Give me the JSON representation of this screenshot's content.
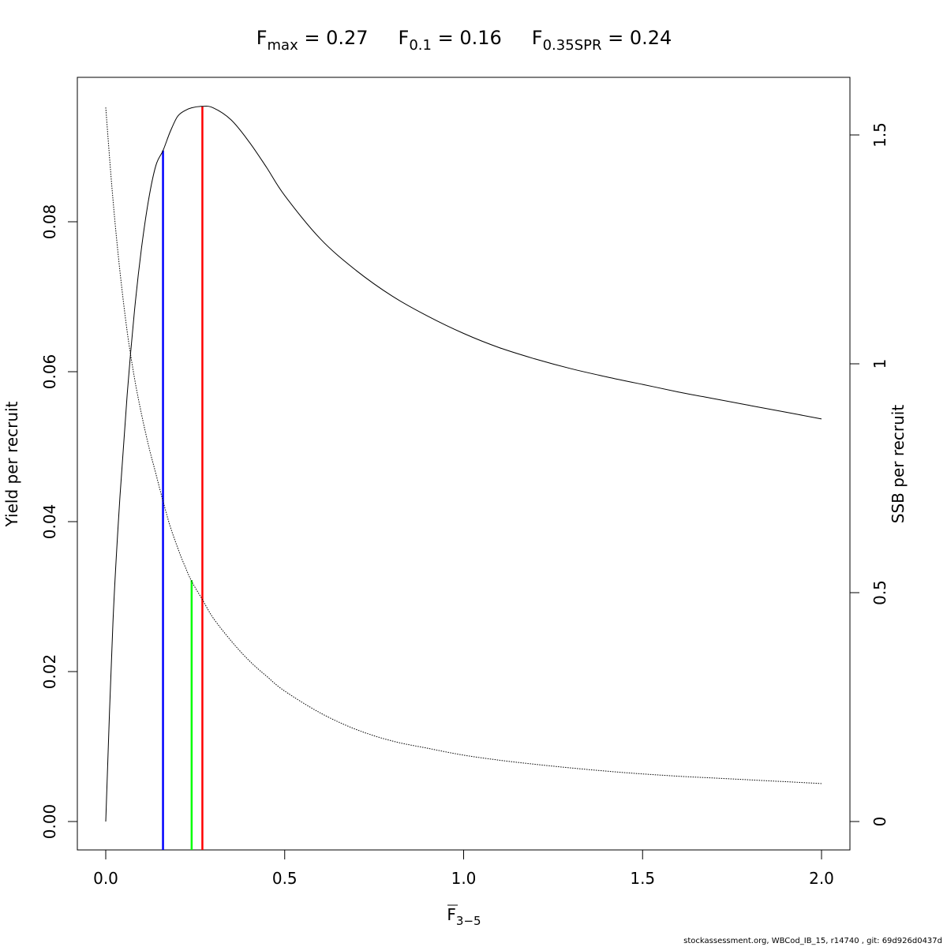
{
  "chart_data": {
    "type": "line",
    "title_parts": [
      {
        "main": "F",
        "sub": "max",
        "value": "= 0.27"
      },
      {
        "main": "F",
        "sub": "0.1",
        "value": "= 0.16"
      },
      {
        "main": "F",
        "sub": "0.35SPR",
        "value": "= 0.24"
      }
    ],
    "xlabel": {
      "main": "F",
      "sub": "3−5"
    },
    "ylabel_left": "Yield per recruit",
    "ylabel_right": "SSB per recruit",
    "xlim": [
      0,
      2
    ],
    "ylim_left": [
      0,
      0.095
    ],
    "ylim_right": [
      0,
      1.6
    ],
    "x_ticks": [
      "0.0",
      "0.5",
      "1.0",
      "1.5",
      "2.0"
    ],
    "x_tick_values": [
      0,
      0.5,
      1.0,
      1.5,
      2.0
    ],
    "y_left_ticks": [
      "0.00",
      "0.02",
      "0.04",
      "0.06",
      "0.08"
    ],
    "y_left_tick_values": [
      0,
      0.02,
      0.04,
      0.06,
      0.08
    ],
    "y_right_ticks": [
      "0",
      "0.5",
      "1",
      "1.5"
    ],
    "y_right_tick_values": [
      0,
      0.5,
      1,
      1.5
    ],
    "series": [
      {
        "axis": "left",
        "style": "solid",
        "x": [
          0,
          0.02,
          0.04,
          0.06,
          0.08,
          0.1,
          0.12,
          0.14,
          0.16,
          0.18,
          0.2,
          0.22,
          0.24,
          0.27,
          0.3,
          0.35,
          0.4,
          0.45,
          0.5,
          0.6,
          0.7,
          0.8,
          0.9,
          1.0,
          1.1,
          1.2,
          1.3,
          1.4,
          1.5,
          1.6,
          1.7,
          1.8,
          1.9,
          2.0
        ],
        "values": [
          0,
          0.0265,
          0.0435,
          0.057,
          0.068,
          0.0765,
          0.083,
          0.0875,
          0.0895,
          0.092,
          0.094,
          0.0948,
          0.0952,
          0.0954,
          0.0952,
          0.0936,
          0.0907,
          0.0872,
          0.0835,
          0.0777,
          0.0735,
          0.0701,
          0.0674,
          0.0651,
          0.0632,
          0.0617,
          0.0604,
          0.0593,
          0.0583,
          0.0573,
          0.0564,
          0.0555,
          0.0546,
          0.0537
        ]
      },
      {
        "axis": "right",
        "style": "dotted",
        "x": [
          0,
          0.02,
          0.04,
          0.06,
          0.08,
          0.1,
          0.12,
          0.14,
          0.16,
          0.18,
          0.2,
          0.22,
          0.24,
          0.27,
          0.3,
          0.35,
          0.4,
          0.45,
          0.5,
          0.6,
          0.7,
          0.8,
          0.9,
          1.0,
          1.1,
          1.2,
          1.3,
          1.4,
          1.5,
          1.6,
          1.7,
          1.8,
          1.9,
          2.0
        ],
        "values": [
          1.56,
          1.36,
          1.2,
          1.07,
          0.97,
          0.89,
          0.82,
          0.76,
          0.7,
          0.645,
          0.6,
          0.56,
          0.525,
          0.485,
          0.445,
          0.395,
          0.352,
          0.317,
          0.285,
          0.237,
          0.201,
          0.176,
          0.16,
          0.145,
          0.134,
          0.125,
          0.117,
          0.11,
          0.104,
          0.099,
          0.095,
          0.091,
          0.087,
          0.083
        ]
      }
    ],
    "reference_lines": [
      {
        "name": "Fmax",
        "x": 0.27,
        "y": 0.0954,
        "color": "#ff0000"
      },
      {
        "name": "F0.1",
        "x": 0.16,
        "y": 0.0895,
        "color": "#0000ff"
      },
      {
        "name": "F0.35SPR",
        "x": 0.24,
        "y": 0.0322,
        "color": "#00ff00"
      }
    ]
  },
  "footer": "stockassessment.org, WBCod_IB_15, r14740 , git: 69d926d0437d"
}
